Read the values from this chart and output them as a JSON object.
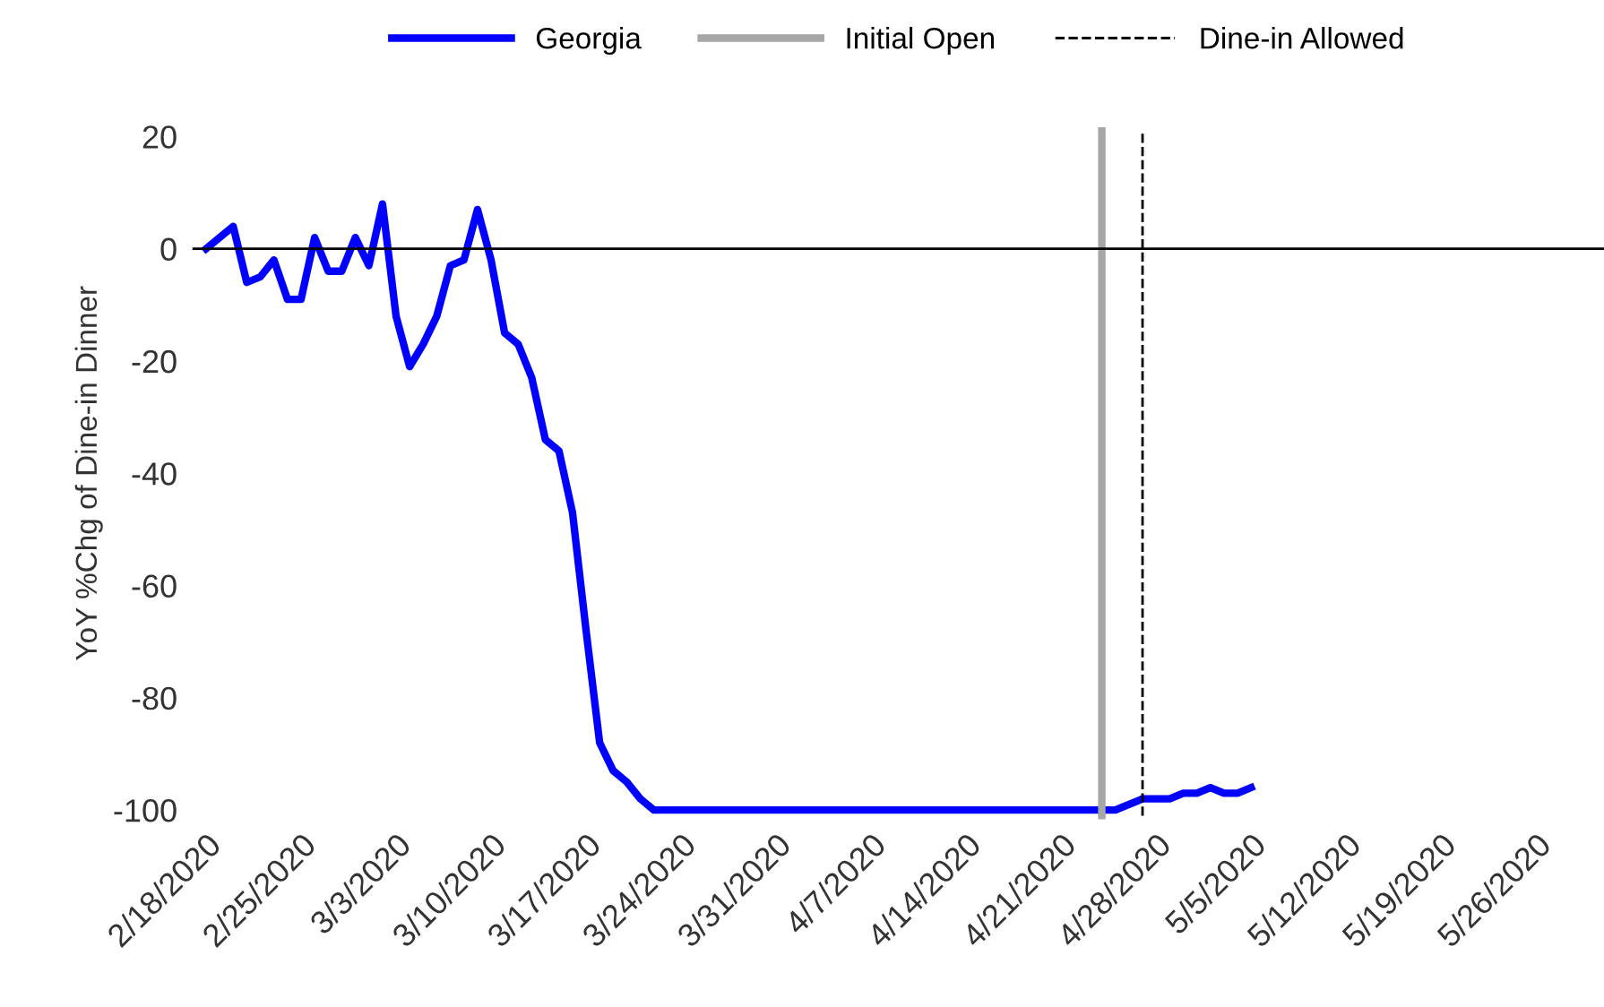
{
  "chart_data": {
    "type": "line",
    "ylabel": "YoY %Chg of Dine-in Dinner",
    "x": [
      "2020-02-18",
      "2020-02-20",
      "2020-02-21",
      "2020-02-22",
      "2020-02-23",
      "2020-02-24",
      "2020-02-25",
      "2020-02-26",
      "2020-02-27",
      "2020-02-28",
      "2020-02-29",
      "2020-03-01",
      "2020-03-02",
      "2020-03-03",
      "2020-03-04",
      "2020-03-05",
      "2020-03-06",
      "2020-03-07",
      "2020-03-08",
      "2020-03-09",
      "2020-03-10",
      "2020-03-11",
      "2020-03-12",
      "2020-03-13",
      "2020-03-14",
      "2020-03-15",
      "2020-03-16",
      "2020-03-17",
      "2020-03-18",
      "2020-03-19",
      "2020-03-20",
      "2020-03-21",
      "2020-03-22",
      "2020-03-23",
      "2020-04-24",
      "2020-04-25",
      "2020-04-26",
      "2020-04-27",
      "2020-04-28",
      "2020-04-29",
      "2020-04-30",
      "2020-05-01",
      "2020-05-02",
      "2020-05-03",
      "2020-05-04",
      "2020-05-05"
    ],
    "series": [
      {
        "name": "Georgia",
        "color": "#0000ff",
        "values": [
          0,
          4,
          -6,
          -5,
          -2,
          -9,
          -9,
          2,
          -4,
          -4,
          2,
          -3,
          8,
          -12,
          -21,
          -17,
          -12,
          -3,
          -2,
          7,
          -2,
          -15,
          -17,
          -23,
          -34,
          -36,
          -47,
          -68,
          -88,
          -93,
          -95,
          -98,
          -100,
          -100,
          -100,
          -100,
          -99,
          -98,
          -98,
          -98,
          -97,
          -97,
          -96,
          -97,
          -97,
          -96
        ]
      }
    ],
    "ref_lines": [
      {
        "axis": "x",
        "value": "2020-04-24",
        "label": "Initial Open",
        "color": "#a6a6a6",
        "line_style": "solid"
      },
      {
        "axis": "x",
        "value": "2020-04-27",
        "label": "Dine-in Allowed",
        "color": "#000000",
        "line_style": "dashed"
      },
      {
        "axis": "y",
        "value": 0,
        "label": null,
        "color": "#000000",
        "line_style": "solid"
      }
    ],
    "xlim": [
      "2020-02-17",
      "2020-05-31"
    ],
    "xticks": [
      {
        "value": "2020-02-18",
        "label": "2/18/2020"
      },
      {
        "value": "2020-02-25",
        "label": "2/25/2020"
      },
      {
        "value": "2020-03-03",
        "label": "3/3/2020"
      },
      {
        "value": "2020-03-10",
        "label": "3/10/2020"
      },
      {
        "value": "2020-03-17",
        "label": "3/17/2020"
      },
      {
        "value": "2020-03-24",
        "label": "3/24/2020"
      },
      {
        "value": "2020-03-31",
        "label": "3/31/2020"
      },
      {
        "value": "2020-04-07",
        "label": "4/7/2020"
      },
      {
        "value": "2020-04-14",
        "label": "4/14/2020"
      },
      {
        "value": "2020-04-21",
        "label": "4/21/2020"
      },
      {
        "value": "2020-04-28",
        "label": "4/28/2020"
      },
      {
        "value": "2020-05-05",
        "label": "5/5/2020"
      },
      {
        "value": "2020-05-12",
        "label": "5/12/2020"
      },
      {
        "value": "2020-05-19",
        "label": "5/19/2020"
      },
      {
        "value": "2020-05-26",
        "label": "5/26/2020"
      }
    ],
    "ylim": [
      -101,
      21
    ],
    "yticks": [
      -100,
      -80,
      -60,
      -40,
      -20,
      0,
      20
    ],
    "grid": false,
    "legend": "top",
    "marker": "none",
    "line_style": "solid"
  }
}
